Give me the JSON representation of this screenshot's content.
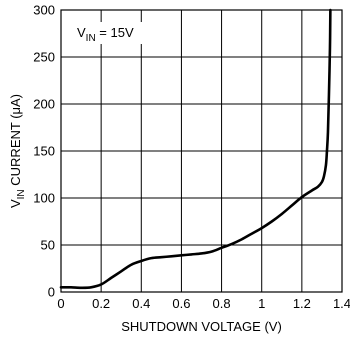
{
  "chart_data": {
    "type": "line",
    "title": "",
    "xlabel": "SHUTDOWN VOLTAGE (V)",
    "ylabel": {
      "prefix": "V",
      "subscript": "IN",
      "suffix": " CURRENT (",
      "mu": "μ",
      "unit_end": "A)"
    },
    "xlim": [
      0,
      1.4
    ],
    "ylim": [
      0,
      300
    ],
    "x_ticks": [
      0,
      0.2,
      0.4,
      0.6,
      0.8,
      1,
      1.2,
      1.4
    ],
    "x_tick_labels": [
      "0",
      "0.2",
      "0.4",
      "0.6",
      "0.8",
      "1",
      "1.2",
      "1.4"
    ],
    "y_ticks": [
      0,
      50,
      100,
      150,
      200,
      250,
      300
    ],
    "y_tick_labels": [
      "0",
      "50",
      "100",
      "150",
      "200",
      "250",
      "300"
    ],
    "grid": true,
    "annotation": {
      "prefix": "V",
      "subscript": "IN",
      "suffix": " = 15V"
    },
    "series": [
      {
        "x": [
          0,
          0.05,
          0.1,
          0.15,
          0.2,
          0.25,
          0.3,
          0.35,
          0.4,
          0.45,
          0.5,
          0.55,
          0.6,
          0.65,
          0.7,
          0.75,
          0.8,
          0.85,
          0.9,
          0.95,
          1.0,
          1.05,
          1.1,
          1.15,
          1.2,
          1.25,
          1.28,
          1.3,
          1.31,
          1.32,
          1.325,
          1.33,
          1.335,
          1.34,
          1.342
        ],
        "y": [
          5,
          5,
          4.5,
          5,
          8,
          15,
          22,
          29,
          33,
          36,
          37,
          38,
          39,
          40,
          41,
          43,
          47,
          51,
          56,
          62,
          68,
          75,
          83,
          92,
          101,
          108,
          112,
          117,
          123,
          135,
          150,
          170,
          210,
          260,
          300
        ]
      }
    ]
  }
}
